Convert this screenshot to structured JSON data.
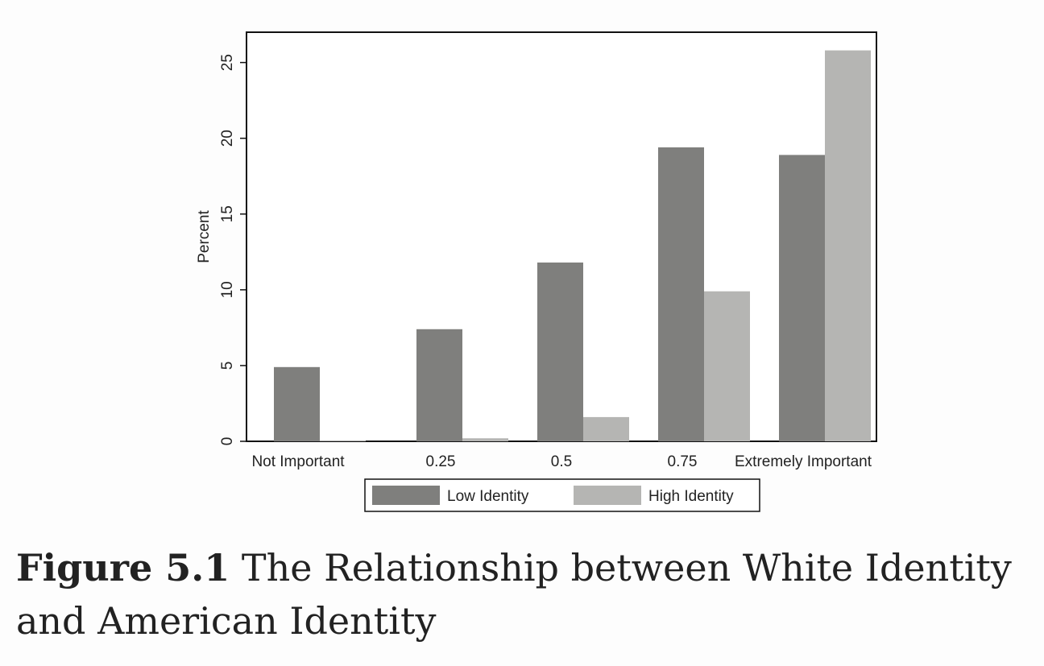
{
  "chart_data": {
    "type": "bar",
    "title": "",
    "xlabel": "",
    "ylabel": "Percent",
    "ylim": [
      0,
      27
    ],
    "yticks": [
      0,
      5,
      10,
      15,
      20,
      25
    ],
    "categories": [
      "Not Important",
      "0.25",
      "0.5",
      "0.75",
      "Extremely Important"
    ],
    "series": [
      {
        "name": "Low Identity",
        "color": "#7f7f7d",
        "values": [
          4.9,
          7.4,
          11.8,
          19.4,
          18.9
        ]
      },
      {
        "name": "High Identity",
        "color": "#b5b5b3",
        "values": [
          0.05,
          0.2,
          1.6,
          9.9,
          25.8
        ]
      }
    ],
    "legend": "bottom-center",
    "grid": false
  },
  "caption": {
    "label": "Figure 5.1",
    "text": "The Relationship between White Identity and American Identity"
  }
}
